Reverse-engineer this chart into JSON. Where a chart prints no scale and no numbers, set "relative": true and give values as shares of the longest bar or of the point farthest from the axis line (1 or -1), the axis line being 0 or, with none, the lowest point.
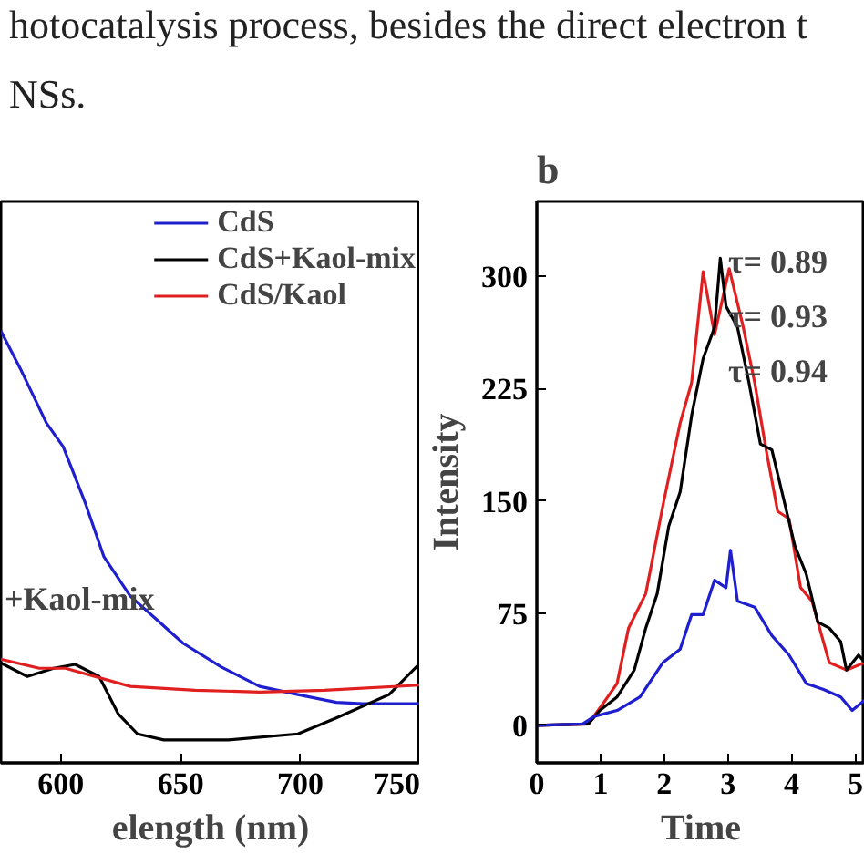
{
  "chart_data": [
    {
      "type": "other",
      "annotations": [
        "hotocatalysis process, besides the direct electron t",
        "NSs."
      ]
    },
    {
      "type": "line",
      "relative": true,
      "xlabel": "elength (nm)",
      "xlim": [
        575,
        750
      ],
      "xticks": [
        600,
        650,
        700,
        750
      ],
      "legend": "top right",
      "annotations": [
        "+Kaol-mix"
      ],
      "x": [
        575,
        583,
        594,
        601,
        610,
        618,
        629,
        640,
        651,
        667,
        683,
        699,
        715,
        726,
        750
      ],
      "series": [
        {
          "name": "CdS",
          "color": "#1f1fd0",
          "values": [
            1.0,
            0.914,
            0.787,
            0.732,
            0.605,
            0.477,
            0.386,
            0.332,
            0.277,
            0.222,
            0.177,
            0.158,
            0.14,
            0.137,
            0.137
          ]
        },
        {
          "name": "CdS+Kaol-mix",
          "color": "#000000",
          "x": [
            575,
            586,
            597,
            606,
            616,
            624,
            632,
            643,
            670,
            699,
            715,
            737,
            750
          ],
          "values": [
            0.231,
            0.2,
            0.219,
            0.228,
            0.2,
            0.113,
            0.067,
            0.053,
            0.053,
            0.067,
            0.104,
            0.158,
            0.231
          ]
        },
        {
          "name": "CdS/Kaol",
          "color": "#e02020",
          "x": [
            575,
            591,
            602,
            629,
            656,
            683,
            710,
            750
          ],
          "values": [
            0.24,
            0.219,
            0.219,
            0.177,
            0.168,
            0.164,
            0.168,
            0.18
          ]
        }
      ]
    },
    {
      "type": "line",
      "title": "b",
      "xlabel": "Time",
      "ylabel": "Intensity",
      "xlim": [
        0,
        5.15
      ],
      "xticks": [
        0,
        1,
        2,
        3,
        4,
        5
      ],
      "ylim": [
        -25,
        350
      ],
      "yticks": [
        0,
        75,
        150,
        225,
        300
      ],
      "annotations": [
        "τ= 0.89",
        "τ= 0.93",
        "τ= 0.94"
      ],
      "series": [
        {
          "color": "#e02020",
          "x": [
            0,
            0.81,
            1.08,
            1.26,
            1.44,
            1.71,
            1.98,
            2.25,
            2.43,
            2.61,
            2.79,
            3.02,
            3.24,
            3.42,
            3.6,
            3.78,
            3.96,
            4.14,
            4.32,
            4.59,
            4.86,
            5.15
          ],
          "values": [
            0,
            1,
            17,
            28,
            65,
            88,
            147,
            202,
            229,
            303,
            261,
            305,
            266,
            229,
            184,
            143,
            138,
            92,
            83,
            42,
            37,
            42
          ]
        },
        {
          "color": "#000000",
          "x": [
            0,
            0.81,
            0.99,
            1.26,
            1.53,
            1.71,
            1.89,
            2.07,
            2.25,
            2.43,
            2.61,
            2.79,
            2.88,
            2.97,
            3.15,
            3.33,
            3.51,
            3.69,
            3.87,
            4.05,
            4.23,
            4.41,
            4.59,
            4.77,
            4.86,
            5.05,
            5.15
          ],
          "values": [
            0,
            1,
            10,
            19,
            37,
            65,
            88,
            133,
            156,
            207,
            245,
            266,
            312,
            280,
            266,
            229,
            188,
            184,
            152,
            120,
            101,
            69,
            65,
            56,
            37,
            47,
            42
          ]
        },
        {
          "color": "#1f1fd0",
          "x": [
            0,
            0.72,
            0.9,
            1.26,
            1.62,
            1.98,
            2.25,
            2.43,
            2.61,
            2.79,
            2.97,
            3.04,
            3.15,
            3.42,
            3.69,
            3.96,
            4.23,
            4.5,
            4.77,
            4.95,
            5.15
          ],
          "values": [
            0,
            1,
            6,
            10,
            19,
            42,
            51,
            74,
            74,
            97,
            92,
            117,
            83,
            79,
            60,
            47,
            28,
            24,
            19,
            10,
            17
          ]
        }
      ]
    }
  ]
}
